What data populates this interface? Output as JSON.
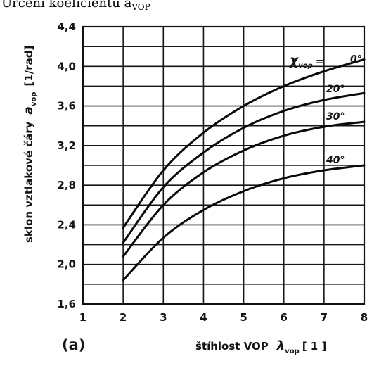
{
  "header_text": "Určení koeficientu a",
  "header_sub": "VOP",
  "panel_label": "(a)",
  "chart_data": {
    "type": "line",
    "xlabel": "štíhlost VOP",
    "xlabel_symbol": "λ",
    "xlabel_symbol_sub": "vop",
    "xlabel_unit": "[ 1 ]",
    "ylabel": "sklon vztlakové čáry",
    "ylabel_symbol": "a",
    "ylabel_symbol_sub": "vop",
    "ylabel_unit": "[1/rad]",
    "xlim": [
      1,
      8
    ],
    "ylim": [
      1.6,
      4.4
    ],
    "x_ticks": [
      "1",
      "2",
      "3",
      "4",
      "5",
      "6",
      "7",
      "8"
    ],
    "y_ticks": [
      "1,6",
      "2,0",
      "2,4",
      "2,8",
      "3,2",
      "3,6",
      "4,0",
      "4,4"
    ],
    "grid_x": [
      1,
      2,
      3,
      4,
      5,
      6,
      7,
      8
    ],
    "grid_y": [
      1.6,
      1.8,
      2.0,
      2.2,
      2.4,
      2.6,
      2.8,
      3.0,
      3.2,
      3.4,
      3.6,
      3.8,
      4.0,
      4.2,
      4.4
    ],
    "grid": true,
    "parameter_symbol": "χ",
    "parameter_sub": "vop",
    "series": [
      {
        "name": "0°",
        "x": [
          2,
          3,
          4,
          5,
          6,
          7,
          8
        ],
        "y": [
          2.37,
          2.95,
          3.33,
          3.6,
          3.8,
          3.95,
          4.07
        ]
      },
      {
        "name": "20°",
        "x": [
          2,
          3,
          4,
          5,
          6,
          7,
          8
        ],
        "y": [
          2.22,
          2.78,
          3.13,
          3.38,
          3.55,
          3.66,
          3.73
        ]
      },
      {
        "name": "30°",
        "x": [
          2,
          3,
          4,
          5,
          6,
          7,
          8
        ],
        "y": [
          2.08,
          2.6,
          2.93,
          3.15,
          3.3,
          3.39,
          3.44
        ]
      },
      {
        "name": "40°",
        "x": [
          2,
          3,
          4,
          5,
          6,
          7,
          8
        ],
        "y": [
          1.84,
          2.27,
          2.55,
          2.74,
          2.87,
          2.95,
          3.0
        ]
      }
    ]
  }
}
